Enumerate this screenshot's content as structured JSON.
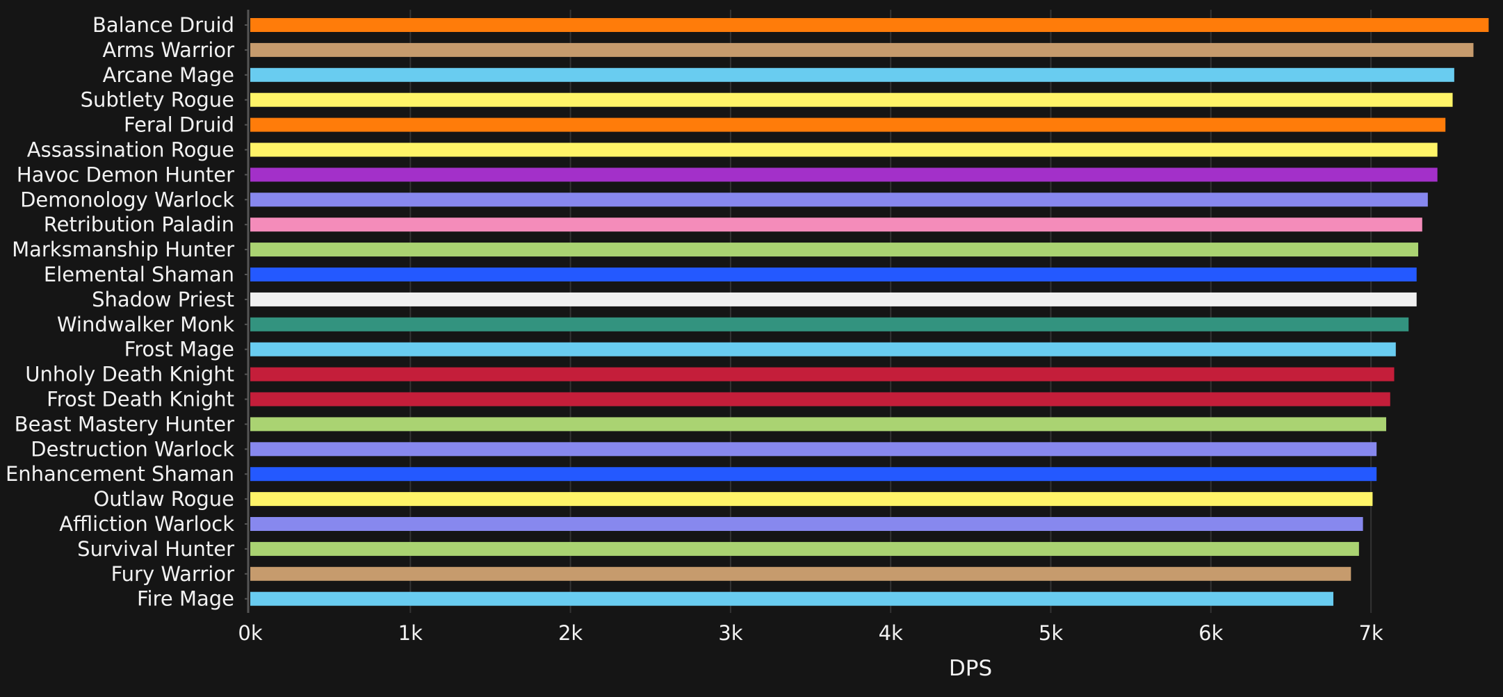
{
  "chart_data": {
    "type": "bar",
    "orientation": "horizontal",
    "xlabel": "DPS",
    "ylabel": "",
    "xlim": [
      0,
      7750
    ],
    "grid": true,
    "ticks": [
      {
        "value": 0,
        "label": "0k"
      },
      {
        "value": 1000,
        "label": "1k"
      },
      {
        "value": 2000,
        "label": "2k"
      },
      {
        "value": 3000,
        "label": "3k"
      },
      {
        "value": 4000,
        "label": "4k"
      },
      {
        "value": 5000,
        "label": "5k"
      },
      {
        "value": 6000,
        "label": "6k"
      },
      {
        "value": 7000,
        "label": "7k"
      }
    ],
    "bars": [
      {
        "label": "Balance Druid",
        "value": 7735,
        "color": "#ff7c0a"
      },
      {
        "label": "Arms Warrior",
        "value": 7640,
        "color": "#c69b6d"
      },
      {
        "label": "Arcane Mage",
        "value": 7520,
        "color": "#69ccf0"
      },
      {
        "label": "Subtlety Rogue",
        "value": 7510,
        "color": "#fff468"
      },
      {
        "label": "Feral Druid",
        "value": 7465,
        "color": "#ff7c0a"
      },
      {
        "label": "Assassination Rogue",
        "value": 7415,
        "color": "#fff468"
      },
      {
        "label": "Havoc Demon Hunter",
        "value": 7415,
        "color": "#a330c9"
      },
      {
        "label": "Demonology Warlock",
        "value": 7355,
        "color": "#8788ee"
      },
      {
        "label": "Retribution Paladin",
        "value": 7320,
        "color": "#f48cba"
      },
      {
        "label": "Marksmanship Hunter",
        "value": 7295,
        "color": "#aad372"
      },
      {
        "label": "Elemental Shaman",
        "value": 7285,
        "color": "#2459ff"
      },
      {
        "label": "Shadow Priest",
        "value": 7285,
        "color": "#f0f0f0"
      },
      {
        "label": "Windwalker Monk",
        "value": 7235,
        "color": "#33937f"
      },
      {
        "label": "Frost Mage",
        "value": 7155,
        "color": "#69ccf0"
      },
      {
        "label": "Unholy Death Knight",
        "value": 7145,
        "color": "#c41e3a"
      },
      {
        "label": "Frost Death Knight",
        "value": 7120,
        "color": "#c41e3a"
      },
      {
        "label": "Beast Mastery Hunter",
        "value": 7095,
        "color": "#aad372"
      },
      {
        "label": "Destruction Warlock",
        "value": 7035,
        "color": "#8788ee"
      },
      {
        "label": "Enhancement Shaman",
        "value": 7035,
        "color": "#2459ff"
      },
      {
        "label": "Outlaw Rogue",
        "value": 7010,
        "color": "#fff468"
      },
      {
        "label": "Affliction Warlock",
        "value": 6950,
        "color": "#8788ee"
      },
      {
        "label": "Survival Hunter",
        "value": 6925,
        "color": "#aad372"
      },
      {
        "label": "Fury Warrior",
        "value": 6875,
        "color": "#c69b6d"
      },
      {
        "label": "Fire Mage",
        "value": 6765,
        "color": "#69ccf0"
      }
    ],
    "colors": {
      "background": "#151515",
      "grid": "#333333",
      "axis": "#555555",
      "text": "#f2f2f2"
    }
  }
}
